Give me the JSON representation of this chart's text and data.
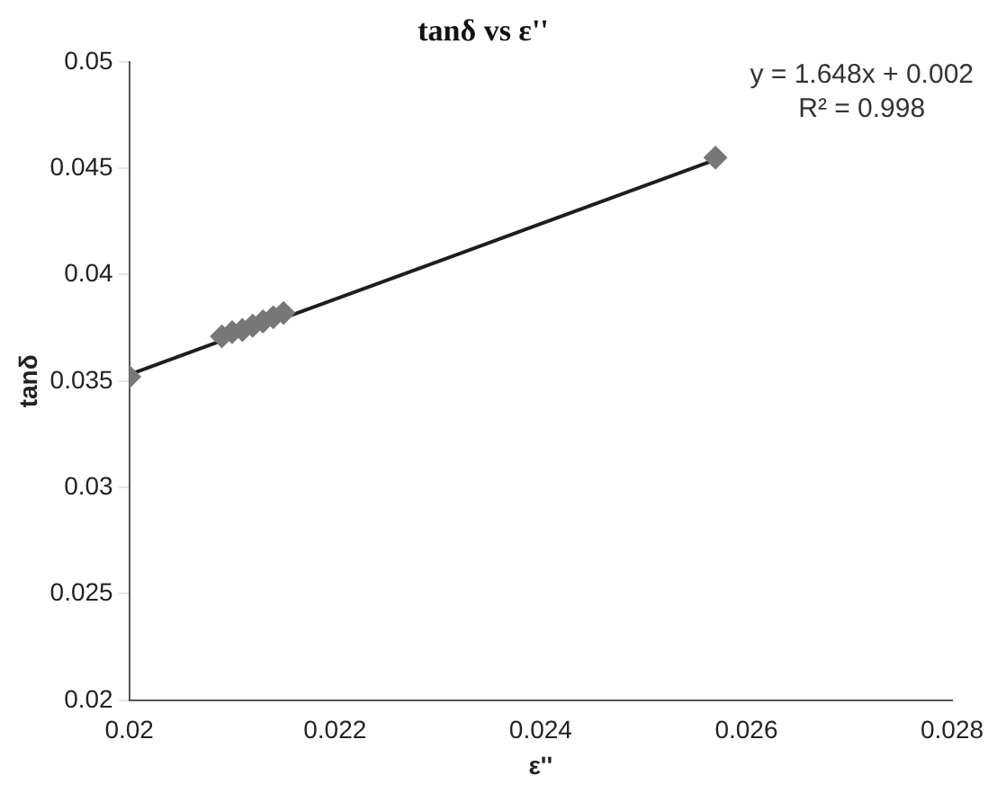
{
  "chart_data": {
    "type": "scatter",
    "title": "tanδ vs ε''",
    "xlabel": "ε''",
    "ylabel": "tanδ",
    "xlim": [
      0.02,
      0.028
    ],
    "xticks": [
      0.02,
      0.022,
      0.024,
      0.026,
      0.028
    ],
    "ylim": [
      0.02,
      0.05
    ],
    "yticks": [
      0.02,
      0.025,
      0.03,
      0.035,
      0.04,
      0.045,
      0.05
    ],
    "grid": false,
    "legend": false,
    "series": [
      {
        "marker": "diamond",
        "color": "#787878",
        "x": [
          0.02,
          0.0209,
          0.021,
          0.0211,
          0.0212,
          0.0213,
          0.0214,
          0.0215,
          0.0257
        ],
        "values": [
          0.0352,
          0.0371,
          0.0373,
          0.0374,
          0.0376,
          0.0378,
          0.038,
          0.0382,
          0.0455
        ]
      },
      {
        "type": "line",
        "marker": "none",
        "color": "#1e1e1e",
        "x": [
          0.02,
          0.0257
        ],
        "values": [
          0.0353,
          0.0454
        ]
      }
    ],
    "annotations": [
      "y = 1.648x + 0.002",
      "R² = 0.998"
    ]
  }
}
